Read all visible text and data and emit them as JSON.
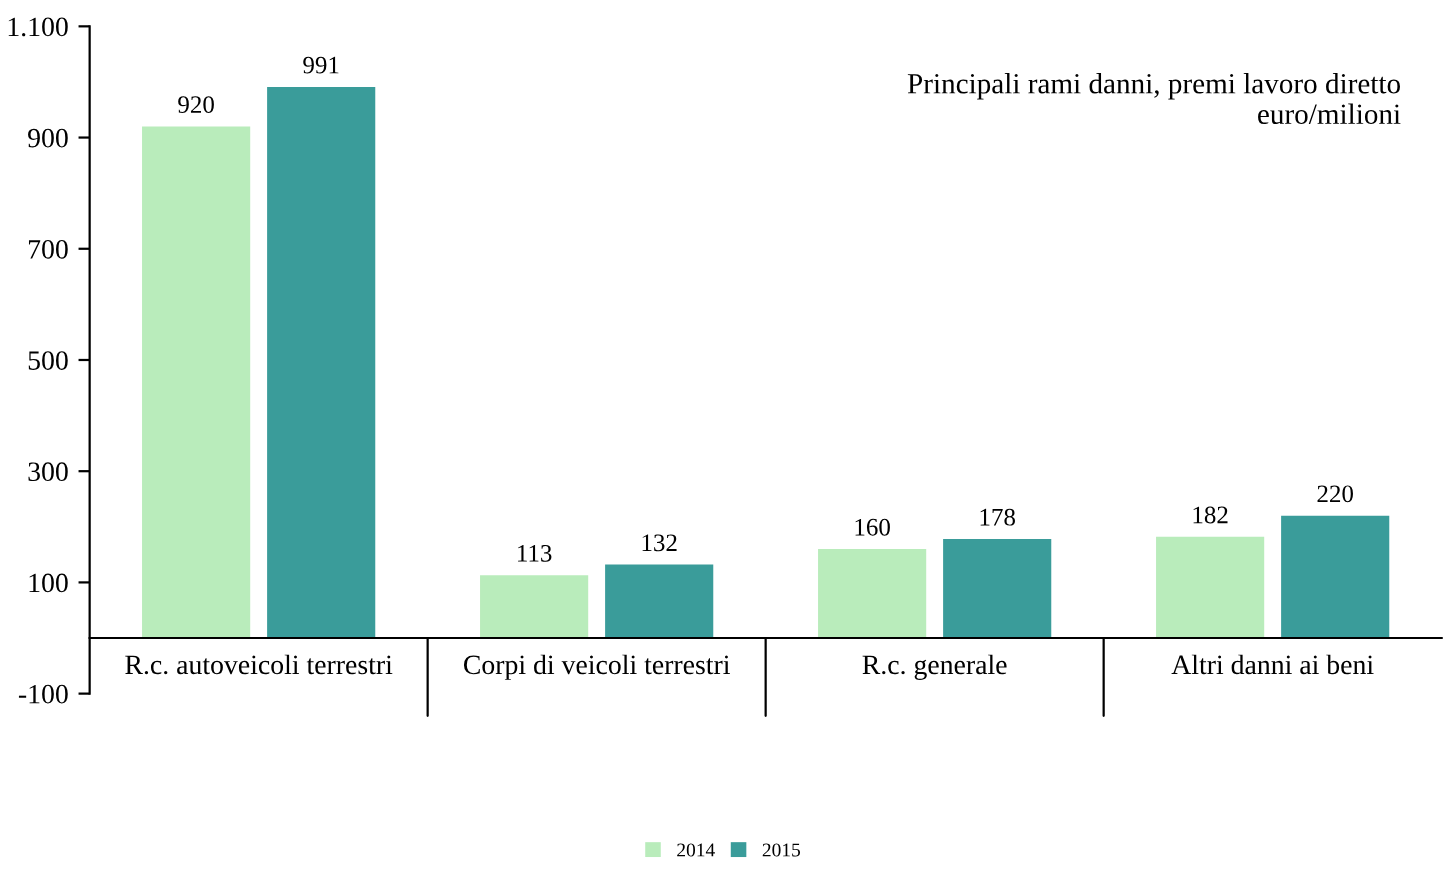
{
  "chart_data": {
    "type": "bar",
    "title": "Principali rami danni, premi lavoro diretto\neuro/milioni",
    "categories": [
      "R.c. autoveicoli terrestri",
      "Corpi di veicoli terrestri",
      "R.c. generale",
      "Altri danni ai beni"
    ],
    "series": [
      {
        "name": "2014",
        "color": "#b9ecbb",
        "values": [
          920,
          113,
          160,
          182
        ]
      },
      {
        "name": "2015",
        "color": "#3a9c9a",
        "values": [
          991,
          132,
          178,
          220
        ]
      }
    ],
    "ylim": [
      -100,
      1100
    ],
    "yticks": [
      -100,
      100,
      300,
      500,
      700,
      900,
      {
        "value": 1100,
        "label": "1.100"
      }
    ],
    "grid": false,
    "legend": "bottom",
    "data_labels": true
  }
}
